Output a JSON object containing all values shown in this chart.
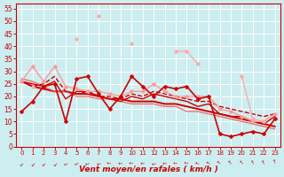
{
  "background_color": "#cceef0",
  "grid_color": "#ffffff",
  "xlabel": "Vent moyen/en rafales ( km/h )",
  "xlabel_color": "#cc0000",
  "xlabel_fontsize": 6.5,
  "tick_color": "#cc0000",
  "tick_fontsize": 5.5,
  "ylim": [
    0,
    57
  ],
  "xlim": [
    -0.5,
    23.5
  ],
  "yticks": [
    0,
    5,
    10,
    15,
    20,
    25,
    30,
    35,
    40,
    45,
    50,
    55
  ],
  "xticks": [
    0,
    1,
    2,
    3,
    4,
    5,
    6,
    7,
    8,
    9,
    10,
    11,
    12,
    13,
    14,
    15,
    16,
    17,
    18,
    19,
    20,
    21,
    22,
    23
  ],
  "series": [
    {
      "y": [
        14,
        18,
        24,
        25,
        10,
        27,
        28,
        21,
        15,
        20,
        28,
        24,
        20,
        24,
        23,
        24,
        19,
        20,
        5,
        4,
        5,
        6,
        5,
        11
      ],
      "color": "#cc0000",
      "lw": 1.2,
      "marker": "D",
      "ms": 2.5,
      "ls": "-",
      "zorder": 5
    },
    {
      "y": [
        26,
        24,
        25,
        28,
        22,
        21,
        22,
        20,
        20,
        19,
        21,
        20,
        22,
        21,
        20,
        19,
        18,
        18,
        16,
        15,
        14,
        13,
        12,
        13
      ],
      "color": "#cc0000",
      "lw": 1.0,
      "marker": null,
      "ms": 0,
      "ls": "--",
      "zorder": 4
    },
    {
      "y": [
        26,
        25,
        24,
        26,
        19,
        22,
        22,
        20,
        19,
        18,
        20,
        19,
        21,
        20,
        19,
        18,
        16,
        17,
        13,
        12,
        12,
        10,
        9,
        12
      ],
      "color": "#cc0000",
      "lw": 1.0,
      "marker": null,
      "ms": 0,
      "ls": "-",
      "zorder": 4
    },
    {
      "y": [
        26,
        24,
        23,
        22,
        22,
        21,
        21,
        20,
        19,
        19,
        18,
        18,
        18,
        17,
        17,
        16,
        15,
        14,
        13,
        12,
        11,
        10,
        9,
        8
      ],
      "color": "#cc0000",
      "lw": 1.4,
      "marker": null,
      "ms": 0,
      "ls": "-",
      "zorder": 3
    },
    {
      "y": [
        27,
        26,
        24,
        22,
        22,
        20,
        20,
        19,
        19,
        18,
        17,
        17,
        17,
        16,
        16,
        14,
        14,
        13,
        12,
        11,
        10,
        9,
        8,
        7
      ],
      "color": "#ee6666",
      "lw": 0.9,
      "marker": null,
      "ms": 0,
      "ls": "-",
      "zorder": 3
    },
    {
      "y": [
        26,
        32,
        26,
        32,
        24,
        23,
        22,
        22,
        21,
        20,
        22,
        22,
        25,
        22,
        20,
        20,
        20,
        20,
        15,
        14,
        12,
        10,
        10,
        13
      ],
      "color": "#ff9999",
      "lw": 1.0,
      "marker": "D",
      "ms": 2.5,
      "ls": "-",
      "zorder": 4
    },
    {
      "y": [
        null,
        24,
        null,
        null,
        null,
        43,
        null,
        52,
        null,
        null,
        41,
        null,
        null,
        null,
        38,
        38,
        33,
        null,
        null,
        null,
        28,
        11,
        10,
        null
      ],
      "color": "#ffaaaa",
      "lw": 1.0,
      "marker": "D",
      "ms": 2.5,
      "ls": "-",
      "zorder": 4
    }
  ]
}
